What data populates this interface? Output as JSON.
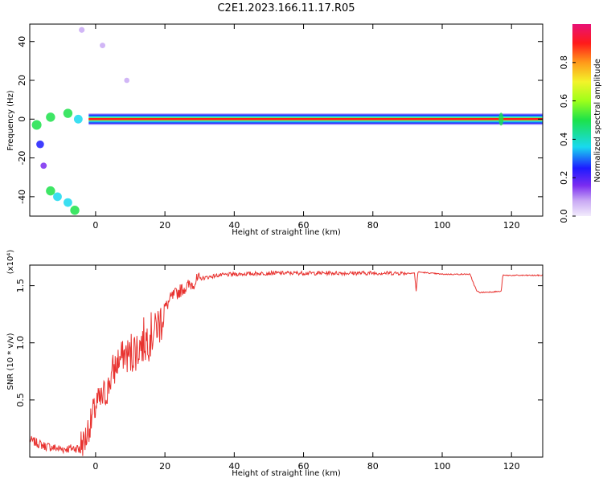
{
  "title": "C2E1.2023.166.11.17.R05",
  "colors": {
    "snr_line": "#e8322f",
    "band": "#ff1a1a",
    "colormap": [
      "#f2ecfc",
      "#c9a9f4",
      "#7a2cf0",
      "#1d1bff",
      "#19d9ef",
      "#1ce24a",
      "#9dff1a",
      "#f3f32a",
      "#ff9a1a",
      "#ff1a1a",
      "#e81276"
    ]
  },
  "chart_data": [
    {
      "type": "heatmap",
      "title": "C2E1.2023.166.11.17.R05",
      "xlabel": "Height of straight line (km)",
      "ylabel": "Frequency (Hz)",
      "xlim": [
        -19,
        129
      ],
      "ylim": [
        -50,
        49
      ],
      "xticks": [
        "0",
        "20",
        "40",
        "60",
        "80",
        "100",
        "120"
      ],
      "yticks": [
        "40",
        "20",
        "0",
        "-20",
        "-40"
      ],
      "colorbar": {
        "label": "Normalized spectral amplitude",
        "range": [
          0.0,
          1.0
        ],
        "ticks": [
          "0.0",
          "0.2",
          "0.4",
          "0.6",
          "0.8"
        ]
      },
      "features": [
        {
          "name": "main_band",
          "x_range": [
            -2,
            129
          ],
          "frequency": 0,
          "width_hz": 6,
          "peak_amplitude": 1.0
        },
        {
          "name": "low_height_blobs",
          "points": [
            [
              -17,
              -3,
              0.5
            ],
            [
              -16,
              -13,
              0.3
            ],
            [
              -13,
              1,
              0.45
            ],
            [
              -8,
              3,
              0.45
            ],
            [
              -5,
              0,
              0.4
            ],
            [
              -13,
              -37,
              0.45
            ],
            [
              -11,
              -40,
              0.4
            ],
            [
              -8,
              -43,
              0.4
            ],
            [
              -6,
              -47,
              0.45
            ],
            [
              -15,
              -24,
              0.15
            ],
            [
              -4,
              46,
              0.1
            ],
            [
              2,
              38,
              0.08
            ],
            [
              9,
              20,
              0.05
            ]
          ]
        }
      ]
    },
    {
      "type": "line",
      "xlabel": "Height of straight line (km)",
      "ylabel": "SNR (10 * v/v)",
      "y_exponent_label": "(x10⁴)",
      "xlim": [
        -19,
        129
      ],
      "ylim": [
        0,
        1.68
      ],
      "xticks": [
        "0",
        "20",
        "40",
        "60",
        "80",
        "100",
        "120"
      ],
      "yticks": [
        "0.5",
        "1.0",
        "1.5"
      ],
      "x": [
        -19,
        -15,
        -10,
        -5,
        -3,
        0,
        3,
        5,
        8,
        10,
        12,
        15,
        18,
        20,
        22,
        25,
        28,
        30,
        35,
        40,
        50,
        60,
        70,
        80,
        88,
        92,
        92.5,
        93,
        100,
        108,
        110,
        111,
        117,
        117.5,
        120,
        129
      ],
      "values": [
        0.15,
        0.1,
        0.07,
        0.08,
        0.15,
        0.45,
        0.55,
        0.75,
        0.9,
        0.9,
        0.95,
        1.05,
        1.15,
        1.3,
        1.4,
        1.47,
        1.52,
        1.56,
        1.59,
        1.6,
        1.61,
        1.61,
        1.61,
        1.61,
        1.61,
        1.61,
        1.45,
        1.62,
        1.6,
        1.6,
        1.45,
        1.44,
        1.45,
        1.59,
        1.59,
        1.59
      ]
    }
  ]
}
